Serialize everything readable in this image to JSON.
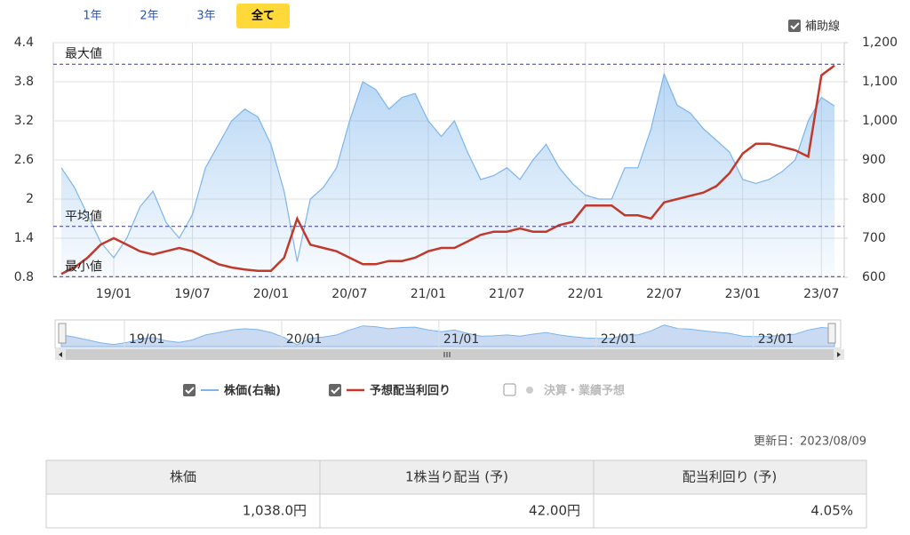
{
  "range_buttons": [
    "1年",
    "2年",
    "3年",
    "全て"
  ],
  "range_selected_index": 3,
  "aux_lines_toggle": {
    "label": "補助線",
    "checked": true
  },
  "chart_data": {
    "type": "line",
    "categories": [
      null,
      null,
      null,
      null,
      "19/01",
      null,
      null,
      null,
      null,
      null,
      "19/07",
      null,
      null,
      null,
      null,
      null,
      "20/01",
      null,
      null,
      null,
      null,
      null,
      "20/07",
      null,
      null,
      null,
      null,
      null,
      "21/01",
      null,
      null,
      null,
      null,
      null,
      "21/07",
      null,
      null,
      null,
      null,
      null,
      "22/01",
      null,
      null,
      null,
      null,
      null,
      "22/07",
      null,
      null,
      null,
      null,
      null,
      "23/01",
      null,
      null,
      null,
      null,
      null,
      "23/07",
      null
    ],
    "series": [
      {
        "name": "株価(右軸)",
        "color": "#7cb5ec",
        "axis": "y2",
        "values": [
          880,
          830,
          760,
          690,
          650,
          700,
          780,
          820,
          740,
          700,
          760,
          880,
          940,
          1000,
          1030,
          1010,
          940,
          820,
          640,
          800,
          830,
          880,
          1000,
          1100,
          1080,
          1030,
          1060,
          1070,
          1000,
          960,
          1000,
          920,
          850,
          860,
          880,
          850,
          900,
          940,
          880,
          840,
          810,
          800,
          800,
          880,
          880,
          980,
          1120,
          1040,
          1020,
          980,
          950,
          920,
          850,
          840,
          850,
          870,
          900,
          1000,
          1060,
          1038
        ]
      },
      {
        "name": "予想配当利回り",
        "color": "#c0392b",
        "values": [
          0.85,
          0.95,
          1.1,
          1.3,
          1.4,
          1.3,
          1.2,
          1.15,
          1.2,
          1.25,
          1.2,
          1.1,
          1.0,
          0.95,
          0.92,
          0.9,
          0.9,
          1.1,
          1.7,
          1.3,
          1.25,
          1.2,
          1.1,
          1.0,
          1.0,
          1.05,
          1.05,
          1.1,
          1.2,
          1.25,
          1.25,
          1.35,
          1.45,
          1.5,
          1.5,
          1.55,
          1.5,
          1.5,
          1.6,
          1.65,
          1.9,
          1.9,
          1.9,
          1.75,
          1.75,
          1.7,
          1.95,
          2.0,
          2.05,
          2.1,
          2.2,
          2.4,
          2.7,
          2.85,
          2.85,
          2.8,
          2.75,
          2.65,
          3.9,
          4.05
        ]
      }
    ],
    "ylim": [
      0.8,
      4.4
    ],
    "yticks": [
      0.8,
      1.4,
      2,
      2.6,
      3.2,
      3.8,
      4.4
    ],
    "y2lim": [
      600,
      1200
    ],
    "y2ticks": [
      600,
      700,
      800,
      900,
      {
        "value": 1000,
        "label": "1,000"
      },
      {
        "value": 1100,
        "label": "1,100"
      },
      {
        "value": 1200,
        "label": "1,200"
      }
    ],
    "grid": true,
    "ref_lines": [
      {
        "label": "最大値",
        "value": 4.07
      },
      {
        "label": "平均値",
        "value": 1.58
      },
      {
        "label": "最小値",
        "value": 0.81
      }
    ]
  },
  "events_toggle": {
    "label": "決算・業績予想",
    "checked": false
  },
  "updated": "更新日：2023/08/09",
  "table": {
    "headers": [
      "株価",
      "1株当り配当 (予)",
      "配当利回り (予)"
    ],
    "rows": [
      [
        "1,038.0円",
        "42.00円",
        "4.05%"
      ]
    ]
  }
}
